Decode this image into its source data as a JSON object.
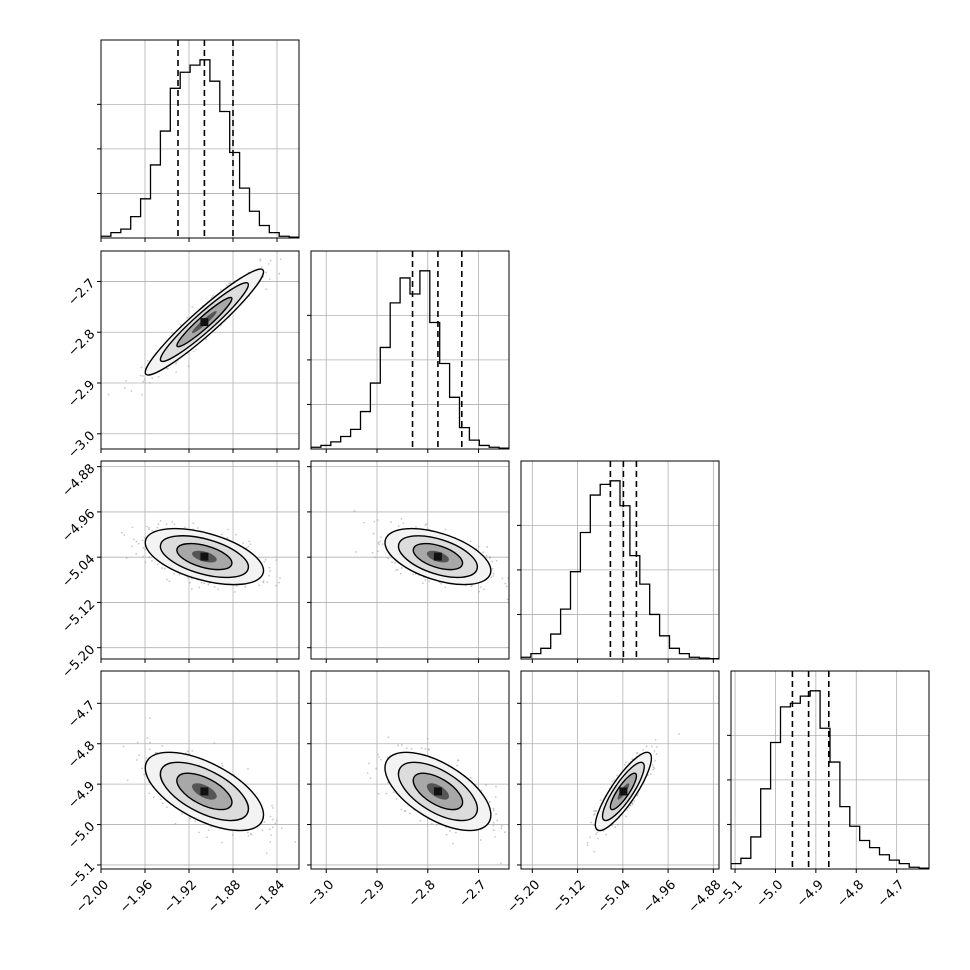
{
  "chart_data": {
    "type": "corner",
    "variables": [
      {
        "range": [
          -2.0,
          -1.82
        ],
        "ticks": [
          -2.0,
          -1.96,
          -1.92,
          -1.88,
          -1.84
        ],
        "tick_labels": [
          "−2.00",
          "−1.96",
          "−1.92",
          "−1.88",
          "−1.84"
        ],
        "median": -1.906,
        "q16": -1.93,
        "q84": -1.88
      },
      {
        "range": [
          -3.03,
          -2.64
        ],
        "ticks": [
          -3.0,
          -2.9,
          -2.8,
          -2.7
        ],
        "tick_labels": [
          "−3.0",
          "−2.9",
          "−2.8",
          "−2.7"
        ],
        "median": -2.78,
        "q16": -2.83,
        "q84": -2.733
      },
      {
        "range": [
          -5.22,
          -4.87
        ],
        "ticks": [
          -5.2,
          -5.12,
          -5.04,
          -4.96,
          -4.88
        ],
        "tick_labels": [
          "−5.20",
          "−5.12",
          "−5.04",
          "−4.96",
          "−4.88"
        ],
        "median": -5.039,
        "q16": -5.062,
        "q84": -5.016
      },
      {
        "range": [
          -5.11,
          -4.62
        ],
        "ticks": [
          -5.1,
          -5.0,
          -4.9,
          -4.8,
          -4.7
        ],
        "tick_labels": [
          "−5.1",
          "−5.0",
          "−4.9",
          "−4.8",
          "−4.7"
        ],
        "median": -4.918,
        "q16": -4.958,
        "q84": -4.868
      }
    ],
    "histograms": [
      [
        0.01,
        0.03,
        0.05,
        0.12,
        0.22,
        0.41,
        0.6,
        0.84,
        0.93,
        0.97,
        1.0,
        0.88,
        0.71,
        0.48,
        0.28,
        0.15,
        0.07,
        0.03,
        0.01,
        0.005
      ],
      [
        0.01,
        0.02,
        0.04,
        0.07,
        0.11,
        0.21,
        0.37,
        0.57,
        0.82,
        0.96,
        0.87,
        1.0,
        0.71,
        0.48,
        0.29,
        0.12,
        0.05,
        0.02,
        0.01,
        0.005
      ],
      [
        0.01,
        0.03,
        0.06,
        0.14,
        0.28,
        0.49,
        0.71,
        0.92,
        0.98,
        1.0,
        0.86,
        0.58,
        0.42,
        0.25,
        0.13,
        0.06,
        0.03,
        0.01,
        0.005,
        0.002
      ],
      [
        0.03,
        0.06,
        0.18,
        0.45,
        0.71,
        0.91,
        0.93,
        0.97,
        1.0,
        0.79,
        0.6,
        0.35,
        0.24,
        0.16,
        0.12,
        0.08,
        0.05,
        0.03,
        0.01,
        0.005
      ]
    ],
    "correlations": [
      [
        1.0,
        0.95,
        -0.5,
        -0.6
      ],
      [
        0.95,
        1.0,
        -0.5,
        -0.6
      ],
      [
        -0.5,
        -0.5,
        1.0,
        0.85
      ],
      [
        -0.6,
        -0.6,
        0.85,
        1.0
      ]
    ],
    "quantile_line_style": "dashed",
    "grid": true
  }
}
